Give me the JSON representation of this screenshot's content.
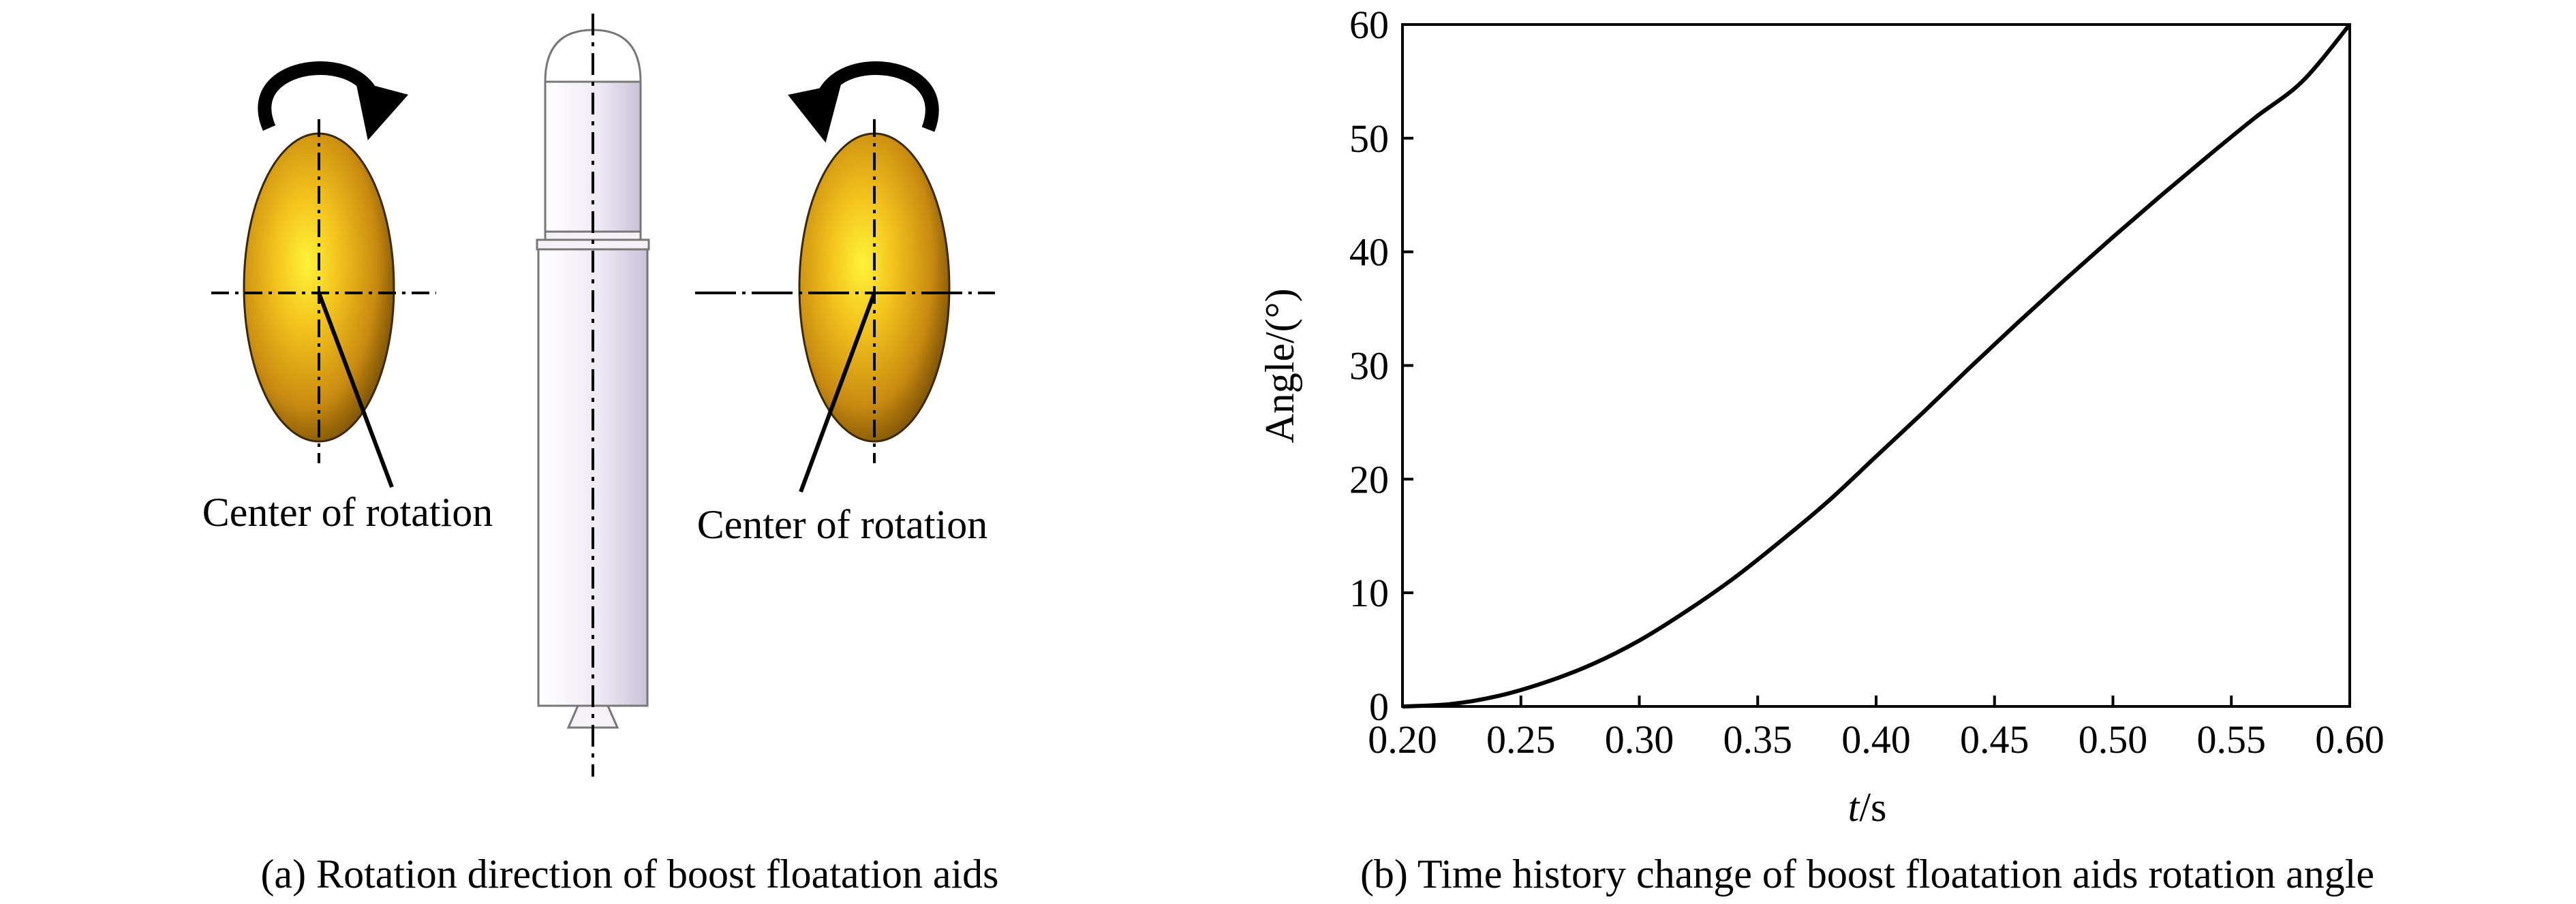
{
  "panel_a": {
    "caption": "(a) Rotation direction of boost floatation aids",
    "left_label": "Center of rotation",
    "right_label": "Center of rotation"
  },
  "panel_b": {
    "caption": "(b) Time history change of boost floatation aids rotation angle"
  },
  "chart_data": {
    "type": "line",
    "title": "",
    "xlabel_italic": "t",
    "xlabel_unit": "/s",
    "ylabel": "Angle/(°)",
    "xlim": [
      0.2,
      0.6
    ],
    "ylim": [
      0,
      60
    ],
    "xticks": [
      "0.20",
      "0.25",
      "0.30",
      "0.35",
      "0.40",
      "0.45",
      "0.50",
      "0.55",
      "0.60"
    ],
    "yticks": [
      "0",
      "10",
      "20",
      "30",
      "40",
      "50",
      "60"
    ],
    "grid": false,
    "series": [
      {
        "color": "#000000",
        "x": [
          0.2,
          0.22,
          0.24,
          0.26,
          0.28,
          0.3,
          0.32,
          0.34,
          0.36,
          0.38,
          0.4,
          0.42,
          0.44,
          0.46,
          0.48,
          0.5,
          0.52,
          0.54,
          0.56,
          0.58,
          0.6
        ],
        "y": [
          0.0,
          0.2,
          0.9,
          2.1,
          3.7,
          5.8,
          8.4,
          11.3,
          14.6,
          18.1,
          22.0,
          25.9,
          29.9,
          33.8,
          37.6,
          41.3,
          44.9,
          48.4,
          51.8,
          55.0,
          60.0
        ]
      }
    ]
  }
}
